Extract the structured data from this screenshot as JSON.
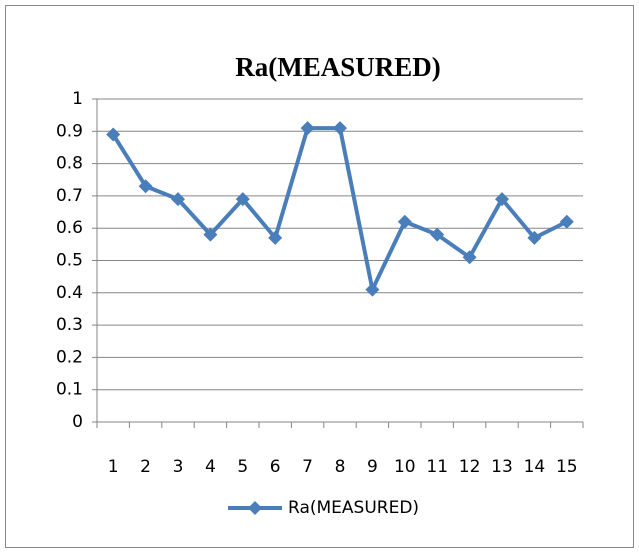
{
  "chart_data": {
    "type": "line",
    "title": "Ra(MEASURED)",
    "categories": [
      "1",
      "2",
      "3",
      "4",
      "5",
      "6",
      "7",
      "8",
      "9",
      "10",
      "11",
      "12",
      "13",
      "14",
      "15"
    ],
    "series": [
      {
        "name": "Ra(MEASURED)",
        "color": "#4a7ebb",
        "values": [
          0.89,
          0.73,
          0.69,
          0.58,
          0.69,
          0.57,
          0.91,
          0.91,
          0.41,
          0.62,
          0.58,
          0.51,
          0.69,
          0.57,
          0.62
        ]
      }
    ],
    "ylim": [
      0,
      1
    ],
    "yticks": [
      0,
      0.1,
      0.2,
      0.3,
      0.4,
      0.5,
      0.6,
      0.7,
      0.8,
      0.9,
      1
    ],
    "grid": true,
    "legend": "bottom"
  }
}
